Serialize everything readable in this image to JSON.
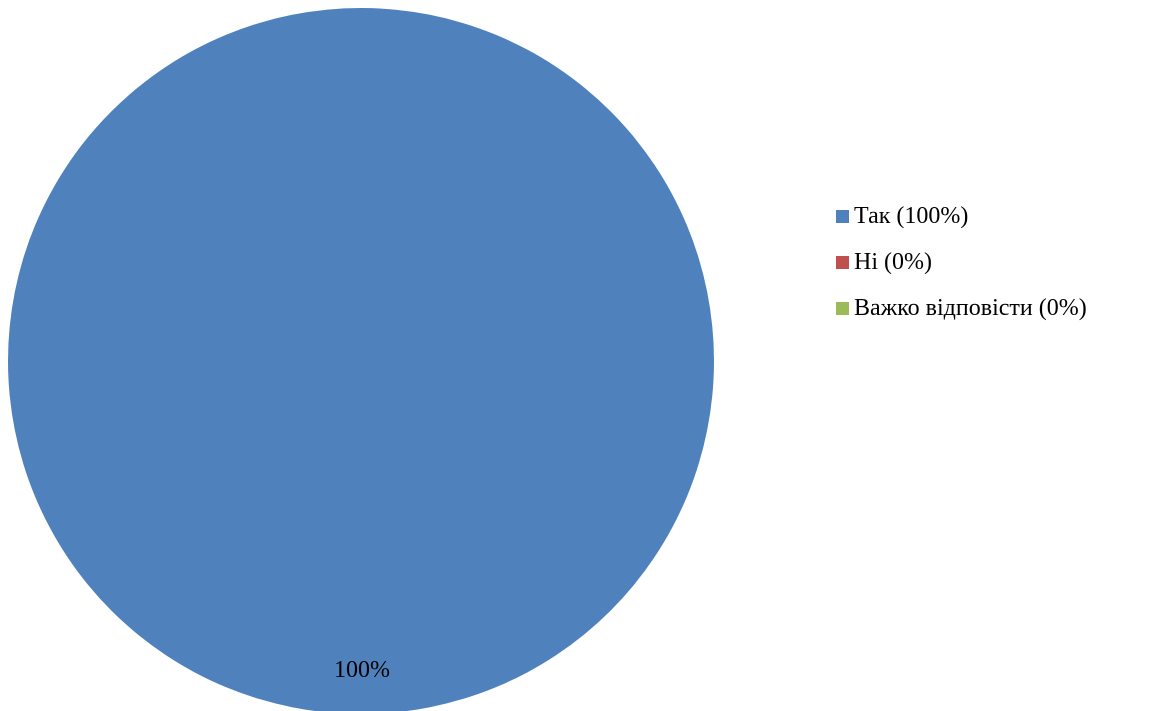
{
  "chart_data": {
    "type": "pie",
    "categories": [
      "Так",
      "Ні",
      "Важко відповісти"
    ],
    "values": [
      100,
      0,
      0
    ],
    "colors": [
      "#4F81BD",
      "#C0504D",
      "#9BBB59"
    ],
    "data_labels": [
      "100%"
    ],
    "legend": {
      "placement": "right",
      "entries": [
        "Так (100%)",
        "Ні (0%)",
        "Важко відповісти (0%)"
      ]
    }
  }
}
